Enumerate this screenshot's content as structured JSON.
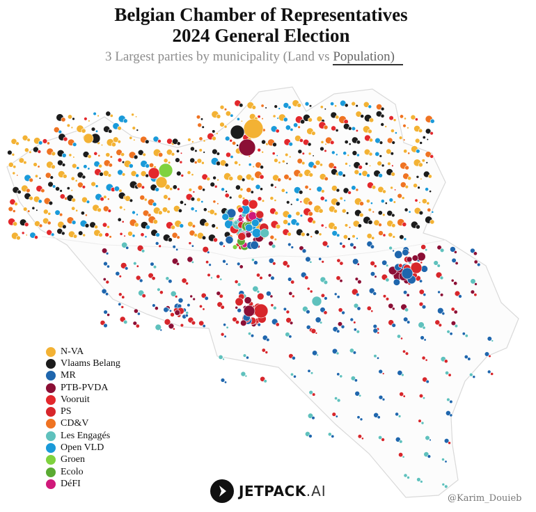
{
  "title_line1": "Belgian Chamber of Representatives",
  "title_line2": "2024 General Election",
  "subtitle_prefix": "3 Largest parties by municipality (Land vs ",
  "subtitle_selected": "Population)",
  "legend": [
    {
      "name": "N-VA",
      "color": "#f3b234"
    },
    {
      "name": "Vlaams Belang",
      "color": "#1c1c1c"
    },
    {
      "name": "MR",
      "color": "#1f66ad"
    },
    {
      "name": "PTB-PVDA",
      "color": "#8b0f35"
    },
    {
      "name": "Vooruit",
      "color": "#e3282c"
    },
    {
      "name": "PS",
      "color": "#d7262b"
    },
    {
      "name": "CD&V",
      "color": "#ef7322"
    },
    {
      "name": "Les Engagés",
      "color": "#5fc1bd"
    },
    {
      "name": "Open VLD",
      "color": "#1a9ad9"
    },
    {
      "name": "Groen",
      "color": "#7fd23e"
    },
    {
      "name": "Ecolo",
      "color": "#5aaa32"
    },
    {
      "name": "DéFI",
      "color": "#d0197a"
    }
  ],
  "brand_bold": "JETPACK",
  "brand_light": ".AI",
  "credit": "@Karim_Douieb"
}
